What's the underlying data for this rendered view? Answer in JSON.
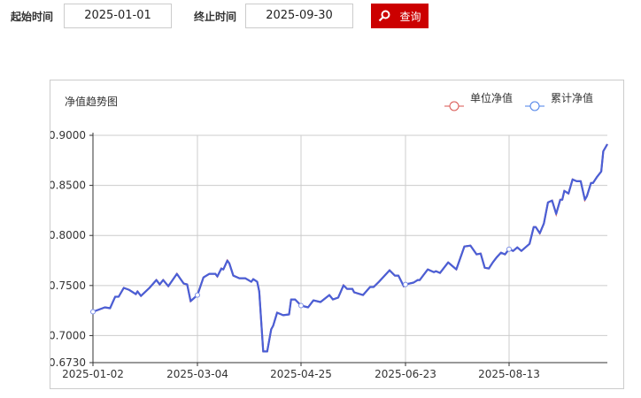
{
  "filter": {
    "start_label": "起始时间",
    "start_value": "2025-01-01",
    "end_label": "终止时间",
    "end_value": "2025-09-30",
    "search_label": "查询",
    "search_icon": "search-icon",
    "button_color": "#cc0000"
  },
  "chart_data": {
    "type": "line",
    "title": "净值趋势图",
    "legend_position": "top-right",
    "grid": true,
    "ylim": [
      0.673,
      0.9
    ],
    "yticks": [
      "0.9000",
      "0.8500",
      "0.8000",
      "0.7500",
      "0.7000",
      "0.6730"
    ],
    "ytick_values": [
      0.9,
      0.85,
      0.8,
      0.75,
      0.7,
      0.673
    ],
    "xlim": [
      "2025-01-02",
      "2025-09-30"
    ],
    "xticks": [
      "2025-01-02",
      "2025-03-04",
      "2025-04-25",
      "2025-06-23",
      "2025-08-13"
    ],
    "series": [
      {
        "name": "单位净值",
        "color": "#d9534f"
      },
      {
        "name": "累计净值",
        "color": "#4a5fd6"
      }
    ],
    "points": [
      [
        "2025-01-02",
        0.7238
      ],
      [
        "2025-01-05",
        0.7256
      ],
      [
        "2025-01-09",
        0.7282
      ],
      [
        "2025-01-12",
        0.7273
      ],
      [
        "2025-01-15",
        0.7388
      ],
      [
        "2025-01-17",
        0.7388
      ],
      [
        "2025-01-20",
        0.7476
      ],
      [
        "2025-01-23",
        0.7458
      ],
      [
        "2025-01-27",
        0.7414
      ],
      [
        "2025-01-28",
        0.7441
      ],
      [
        "2025-01-30",
        0.7396
      ],
      [
        "2025-02-04",
        0.7476
      ],
      [
        "2025-02-08",
        0.7555
      ],
      [
        "2025-02-10",
        0.7511
      ],
      [
        "2025-02-12",
        0.7555
      ],
      [
        "2025-02-15",
        0.7493
      ],
      [
        "2025-02-20",
        0.7617
      ],
      [
        "2025-02-24",
        0.752
      ],
      [
        "2025-02-26",
        0.7511
      ],
      [
        "2025-02-28",
        0.7344
      ],
      [
        "2025-03-04",
        0.7405
      ],
      [
        "2025-03-07",
        0.7581
      ],
      [
        "2025-03-10",
        0.7617
      ],
      [
        "2025-03-13",
        0.7617
      ],
      [
        "2025-03-14",
        0.759
      ],
      [
        "2025-03-16",
        0.767
      ],
      [
        "2025-03-17",
        0.7661
      ],
      [
        "2025-03-19",
        0.7749
      ],
      [
        "2025-03-20",
        0.7722
      ],
      [
        "2025-03-22",
        0.7599
      ],
      [
        "2025-03-25",
        0.7573
      ],
      [
        "2025-03-28",
        0.7573
      ],
      [
        "2025-03-31",
        0.7537
      ],
      [
        "2025-04-01",
        0.7564
      ],
      [
        "2025-04-03",
        0.7537
      ],
      [
        "2025-04-04",
        0.7441
      ],
      [
        "2025-04-06",
        0.6841
      ],
      [
        "2025-04-08",
        0.6841
      ],
      [
        "2025-04-10",
        0.7062
      ],
      [
        "2025-04-11",
        0.7097
      ],
      [
        "2025-04-13",
        0.7229
      ],
      [
        "2025-04-16",
        0.7203
      ],
      [
        "2025-04-19",
        0.7211
      ],
      [
        "2025-04-20",
        0.7361
      ],
      [
        "2025-04-22",
        0.7361
      ],
      [
        "2025-04-25",
        0.73
      ],
      [
        "2025-04-29",
        0.7282
      ],
      [
        "2025-05-02",
        0.7352
      ],
      [
        "2025-05-06",
        0.7335
      ],
      [
        "2025-05-11",
        0.7405
      ],
      [
        "2025-05-13",
        0.7361
      ],
      [
        "2025-05-16",
        0.7379
      ],
      [
        "2025-05-19",
        0.7502
      ],
      [
        "2025-05-21",
        0.7467
      ],
      [
        "2025-05-24",
        0.7467
      ],
      [
        "2025-05-25",
        0.7432
      ],
      [
        "2025-05-30",
        0.7405
      ],
      [
        "2025-06-03",
        0.7485
      ],
      [
        "2025-06-05",
        0.7485
      ],
      [
        "2025-06-08",
        0.7537
      ],
      [
        "2025-06-14",
        0.7652
      ],
      [
        "2025-06-17",
        0.7599
      ],
      [
        "2025-06-19",
        0.7599
      ],
      [
        "2025-06-22",
        0.7493
      ],
      [
        "2025-06-23",
        0.7511
      ],
      [
        "2025-06-27",
        0.7529
      ],
      [
        "2025-06-29",
        0.7555
      ],
      [
        "2025-06-30",
        0.7555
      ],
      [
        "2025-07-02",
        0.7608
      ],
      [
        "2025-07-04",
        0.7661
      ],
      [
        "2025-07-07",
        0.7634
      ],
      [
        "2025-07-08",
        0.7643
      ],
      [
        "2025-07-10",
        0.7626
      ],
      [
        "2025-07-14",
        0.7731
      ],
      [
        "2025-07-18",
        0.7661
      ],
      [
        "2025-07-22",
        0.789
      ],
      [
        "2025-07-25",
        0.7899
      ],
      [
        "2025-07-28",
        0.7811
      ],
      [
        "2025-07-30",
        0.7819
      ],
      [
        "2025-08-01",
        0.7678
      ],
      [
        "2025-08-03",
        0.767
      ],
      [
        "2025-08-05",
        0.7731
      ],
      [
        "2025-08-07",
        0.7784
      ],
      [
        "2025-08-09",
        0.7828
      ],
      [
        "2025-08-11",
        0.7811
      ],
      [
        "2025-08-13",
        0.7863
      ],
      [
        "2025-08-15",
        0.7846
      ],
      [
        "2025-08-17",
        0.7881
      ],
      [
        "2025-08-19",
        0.7846
      ],
      [
        "2025-08-23",
        0.7916
      ],
      [
        "2025-08-25",
        0.8084
      ],
      [
        "2025-08-26",
        0.8084
      ],
      [
        "2025-08-28",
        0.8022
      ],
      [
        "2025-08-30",
        0.8119
      ],
      [
        "2025-09-01",
        0.833
      ],
      [
        "2025-09-03",
        0.8348
      ],
      [
        "2025-09-05",
        0.8216
      ],
      [
        "2025-09-07",
        0.8357
      ],
      [
        "2025-09-08",
        0.8357
      ],
      [
        "2025-09-09",
        0.8445
      ],
      [
        "2025-09-11",
        0.8419
      ],
      [
        "2025-09-13",
        0.8559
      ],
      [
        "2025-09-15",
        0.8542
      ],
      [
        "2025-09-17",
        0.8542
      ],
      [
        "2025-09-19",
        0.8357
      ],
      [
        "2025-09-20",
        0.8392
      ],
      [
        "2025-09-22",
        0.8524
      ],
      [
        "2025-09-23",
        0.8524
      ],
      [
        "2025-09-25",
        0.8586
      ],
      [
        "2025-09-27",
        0.8639
      ],
      [
        "2025-09-28",
        0.8841
      ],
      [
        "2025-09-30",
        0.8912
      ]
    ]
  }
}
